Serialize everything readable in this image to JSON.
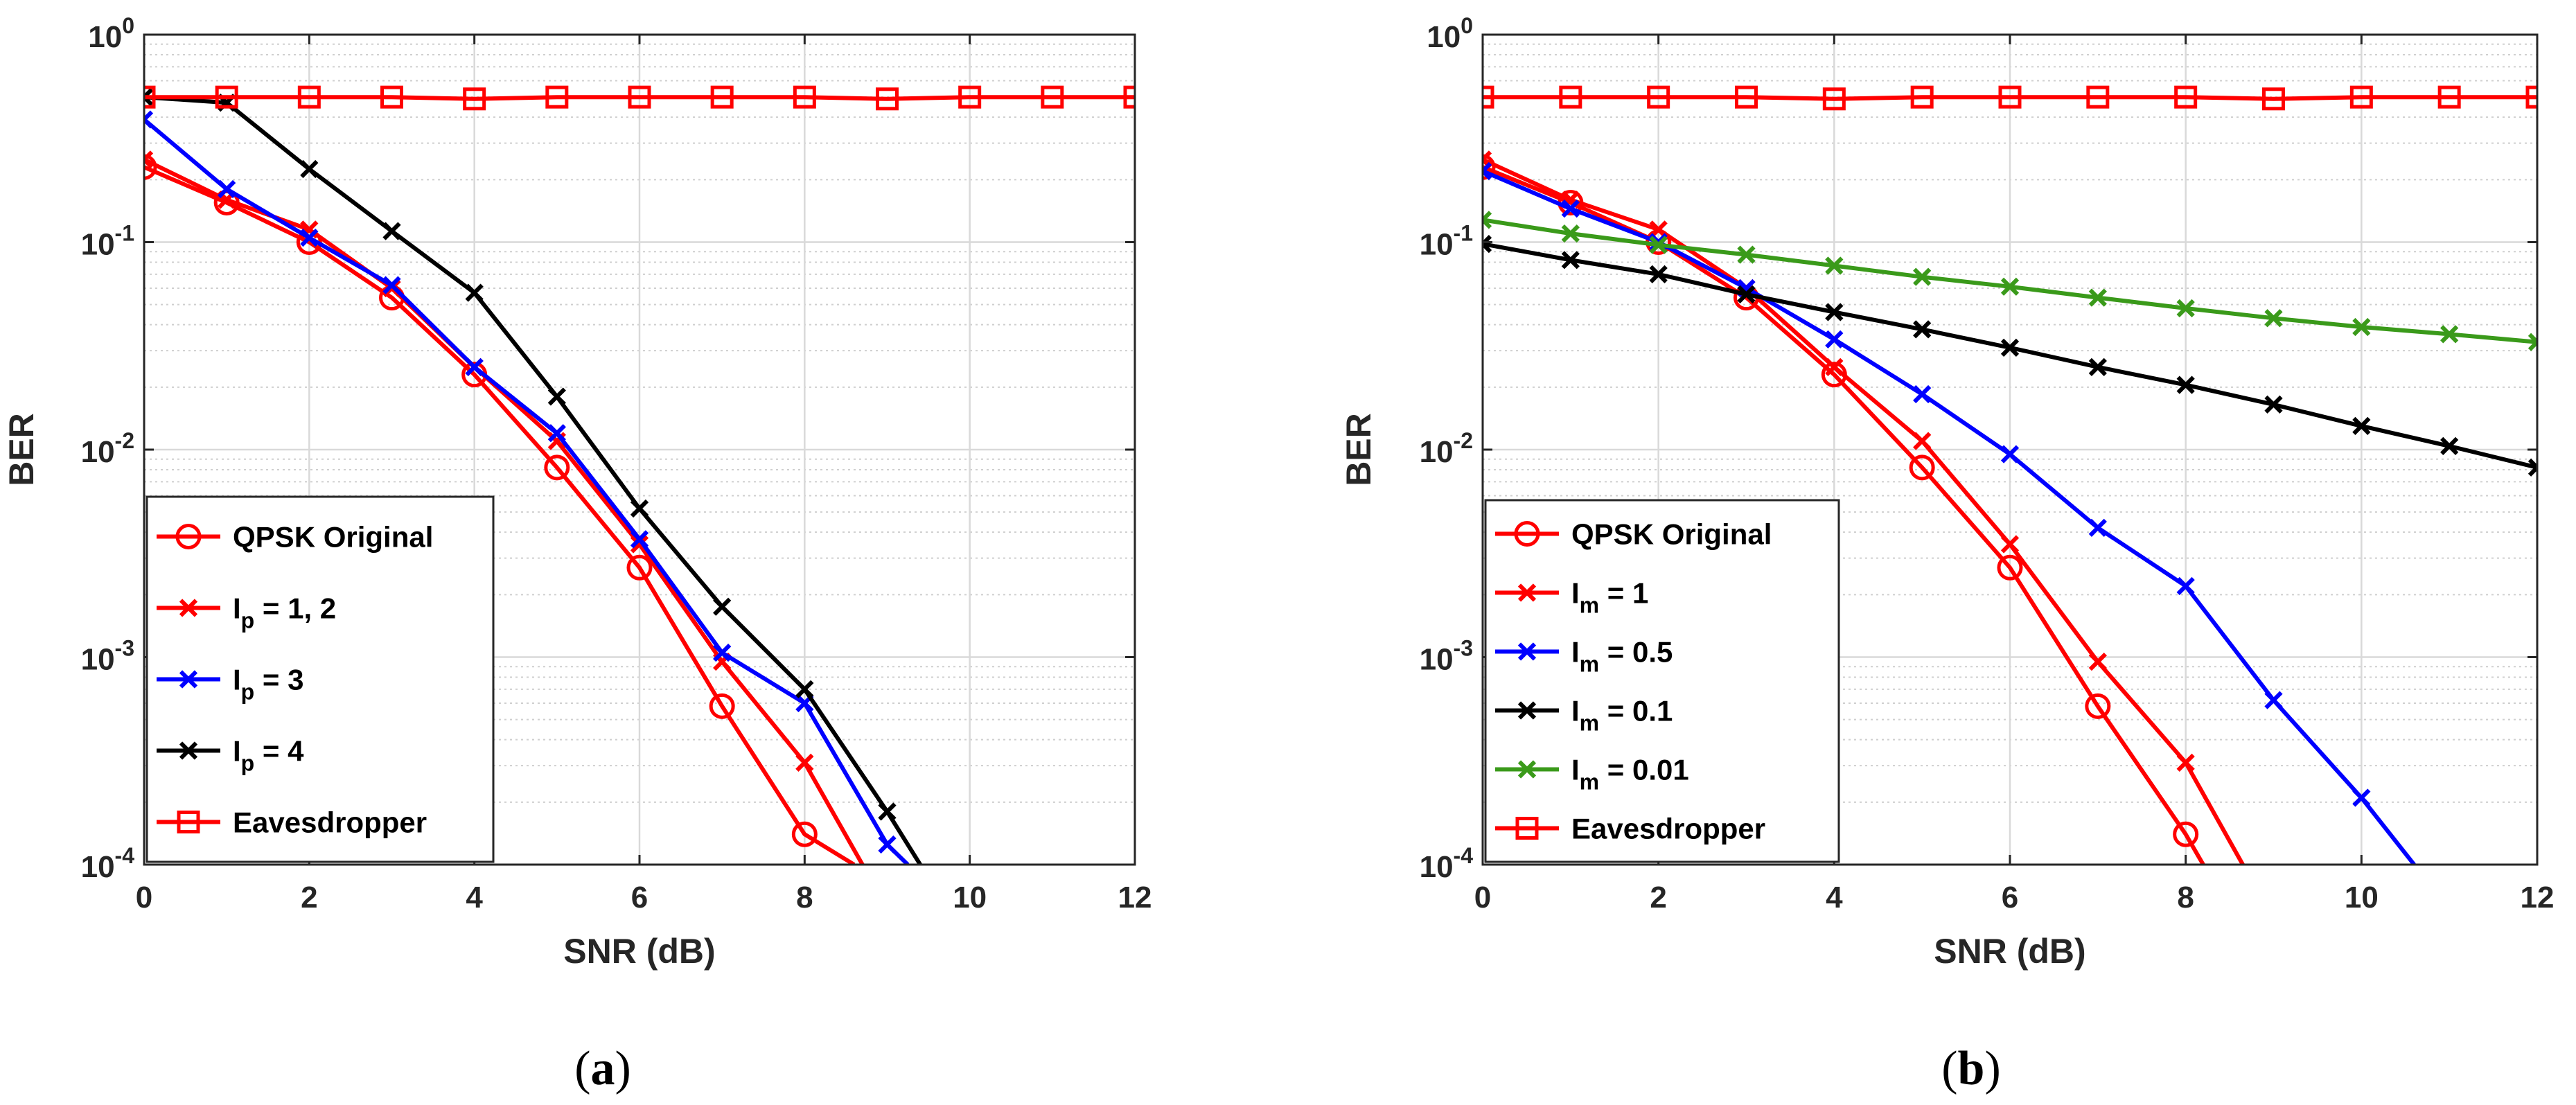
{
  "colors": {
    "red": "#ff0000",
    "blue": "#0000ff",
    "black": "#000000",
    "green": "#3a9a1a",
    "grid": "#d9d9d9",
    "axis": "#262626"
  },
  "chart_data": [
    {
      "id": "a",
      "type": "line",
      "caption": {
        "open": "(",
        "letter": "a",
        "close": ")"
      },
      "xlabel": "SNR (dB)",
      "ylabel": "BER",
      "yscale": "log",
      "xlim": [
        0,
        12
      ],
      "ylim": [
        0.0001,
        1
      ],
      "xticks": [
        0,
        2,
        4,
        6,
        8,
        10,
        12
      ],
      "yticks": [
        {
          "base": "10",
          "exp": "-4"
        },
        {
          "base": "10",
          "exp": "-3"
        },
        {
          "base": "10",
          "exp": "-2"
        },
        {
          "base": "10",
          "exp": "-1"
        },
        {
          "base": "10",
          "exp": "0"
        }
      ],
      "grid": true,
      "legend_position": "bottom-left",
      "series": [
        {
          "name": "QPSK Original",
          "label_main": "QPSK Original",
          "label_sub": "",
          "label_tail": "",
          "color": "#ff0000",
          "marker": "circle",
          "x": [
            0,
            1,
            2,
            3,
            4,
            5,
            6,
            7,
            8,
            8.6
          ],
          "y": [
            0.23,
            0.155,
            0.1,
            0.054,
            0.023,
            0.0082,
            0.0027,
            0.00058,
            0.00014,
            0.0001
          ]
        },
        {
          "name": "Ip = 1, 2",
          "label_main": "I",
          "label_sub": "p",
          "label_tail": " = 1, 2",
          "color": "#ff0000",
          "marker": "x",
          "x": [
            0,
            1,
            2,
            3,
            4,
            5,
            6,
            7,
            8,
            8.7
          ],
          "y": [
            0.25,
            0.16,
            0.115,
            0.06,
            0.025,
            0.011,
            0.0035,
            0.00095,
            0.00031,
            0.0001
          ]
        },
        {
          "name": "Ip = 3",
          "label_main": "I",
          "label_sub": "p",
          "label_tail": " = 3",
          "color": "#0000ff",
          "marker": "x",
          "x": [
            0,
            1,
            2,
            3,
            4,
            5,
            6,
            7,
            8,
            9,
            9.25
          ],
          "y": [
            0.39,
            0.18,
            0.105,
            0.062,
            0.025,
            0.012,
            0.0037,
            0.00105,
            0.0006,
            0.000125,
            0.0001
          ]
        },
        {
          "name": "Ip = 4",
          "label_main": "I",
          "label_sub": "p",
          "label_tail": " = 4",
          "color": "#000000",
          "marker": "x",
          "x": [
            0,
            1,
            2,
            3,
            4,
            5,
            6,
            7,
            8,
            9,
            9.4
          ],
          "y": [
            0.5,
            0.47,
            0.225,
            0.113,
            0.057,
            0.018,
            0.0052,
            0.00175,
            0.0007,
            0.00018,
            0.0001
          ]
        },
        {
          "name": "Eavesdropper",
          "label_main": "Eavesdropper",
          "label_sub": "",
          "label_tail": "",
          "color": "#ff0000",
          "marker": "square",
          "x": [
            0,
            1,
            2,
            3,
            4,
            5,
            6,
            7,
            8,
            9,
            10,
            11,
            12
          ],
          "y": [
            0.5,
            0.5,
            0.5,
            0.5,
            0.49,
            0.5,
            0.5,
            0.5,
            0.5,
            0.49,
            0.5,
            0.5,
            0.5
          ]
        }
      ]
    },
    {
      "id": "b",
      "type": "line",
      "caption": {
        "open": "(",
        "letter": "b",
        "close": ")"
      },
      "xlabel": "SNR (dB)",
      "ylabel": "BER",
      "yscale": "log",
      "xlim": [
        0,
        12
      ],
      "ylim": [
        0.0001,
        1
      ],
      "xticks": [
        0,
        2,
        4,
        6,
        8,
        10,
        12
      ],
      "yticks": [
        {
          "base": "10",
          "exp": "-4"
        },
        {
          "base": "10",
          "exp": "-3"
        },
        {
          "base": "10",
          "exp": "-2"
        },
        {
          "base": "10",
          "exp": "-1"
        },
        {
          "base": "10",
          "exp": "0"
        }
      ],
      "grid": true,
      "legend_position": "bottom-left",
      "series": [
        {
          "name": "QPSK Original",
          "label_main": "QPSK Original",
          "label_sub": "",
          "label_tail": "",
          "color": "#ff0000",
          "marker": "circle",
          "x": [
            0,
            1,
            2,
            3,
            4,
            5,
            6,
            7,
            8,
            8.2
          ],
          "y": [
            0.23,
            0.155,
            0.1,
            0.054,
            0.023,
            0.0082,
            0.0027,
            0.00058,
            0.00014,
            0.0001
          ]
        },
        {
          "name": "Im = 1",
          "label_main": "I",
          "label_sub": "m",
          "label_tail": " = 1",
          "color": "#ff0000",
          "marker": "x",
          "x": [
            0,
            1,
            2,
            3,
            4,
            5,
            6,
            7,
            8,
            8.65
          ],
          "y": [
            0.25,
            0.16,
            0.115,
            0.06,
            0.025,
            0.011,
            0.0035,
            0.00095,
            0.00031,
            0.0001
          ]
        },
        {
          "name": "Im = 0.5",
          "label_main": "I",
          "label_sub": "m",
          "label_tail": " = 0.5",
          "color": "#0000ff",
          "marker": "x",
          "x": [
            0,
            1,
            2,
            3,
            4,
            5,
            6,
            7,
            8,
            9,
            10,
            10.6
          ],
          "y": [
            0.22,
            0.145,
            0.1,
            0.06,
            0.034,
            0.0185,
            0.0095,
            0.0042,
            0.0022,
            0.00062,
            0.00021,
            0.0001
          ]
        },
        {
          "name": "Im = 0.1",
          "label_main": "I",
          "label_sub": "m",
          "label_tail": " = 0.1",
          "color": "#000000",
          "marker": "x",
          "x": [
            0,
            1,
            2,
            3,
            4,
            5,
            6,
            7,
            8,
            9,
            10,
            11,
            12
          ],
          "y": [
            0.098,
            0.082,
            0.07,
            0.056,
            0.046,
            0.038,
            0.031,
            0.025,
            0.0205,
            0.0165,
            0.013,
            0.0104,
            0.0082
          ]
        },
        {
          "name": "Im = 0.01",
          "label_main": "I",
          "label_sub": "m",
          "label_tail": " = 0.01",
          "color": "#3a9a1a",
          "marker": "x",
          "x": [
            0,
            1,
            2,
            3,
            4,
            5,
            6,
            7,
            8,
            9,
            10,
            11,
            12
          ],
          "y": [
            0.128,
            0.11,
            0.097,
            0.087,
            0.077,
            0.068,
            0.061,
            0.054,
            0.048,
            0.043,
            0.039,
            0.036,
            0.033
          ]
        },
        {
          "name": "Eavesdropper",
          "label_main": "Eavesdropper",
          "label_sub": "",
          "label_tail": "",
          "color": "#ff0000",
          "marker": "square",
          "x": [
            0,
            1,
            2,
            3,
            4,
            5,
            6,
            7,
            8,
            9,
            10,
            11,
            12
          ],
          "y": [
            0.5,
            0.5,
            0.5,
            0.5,
            0.49,
            0.5,
            0.5,
            0.5,
            0.5,
            0.49,
            0.5,
            0.5,
            0.5
          ]
        }
      ]
    }
  ]
}
